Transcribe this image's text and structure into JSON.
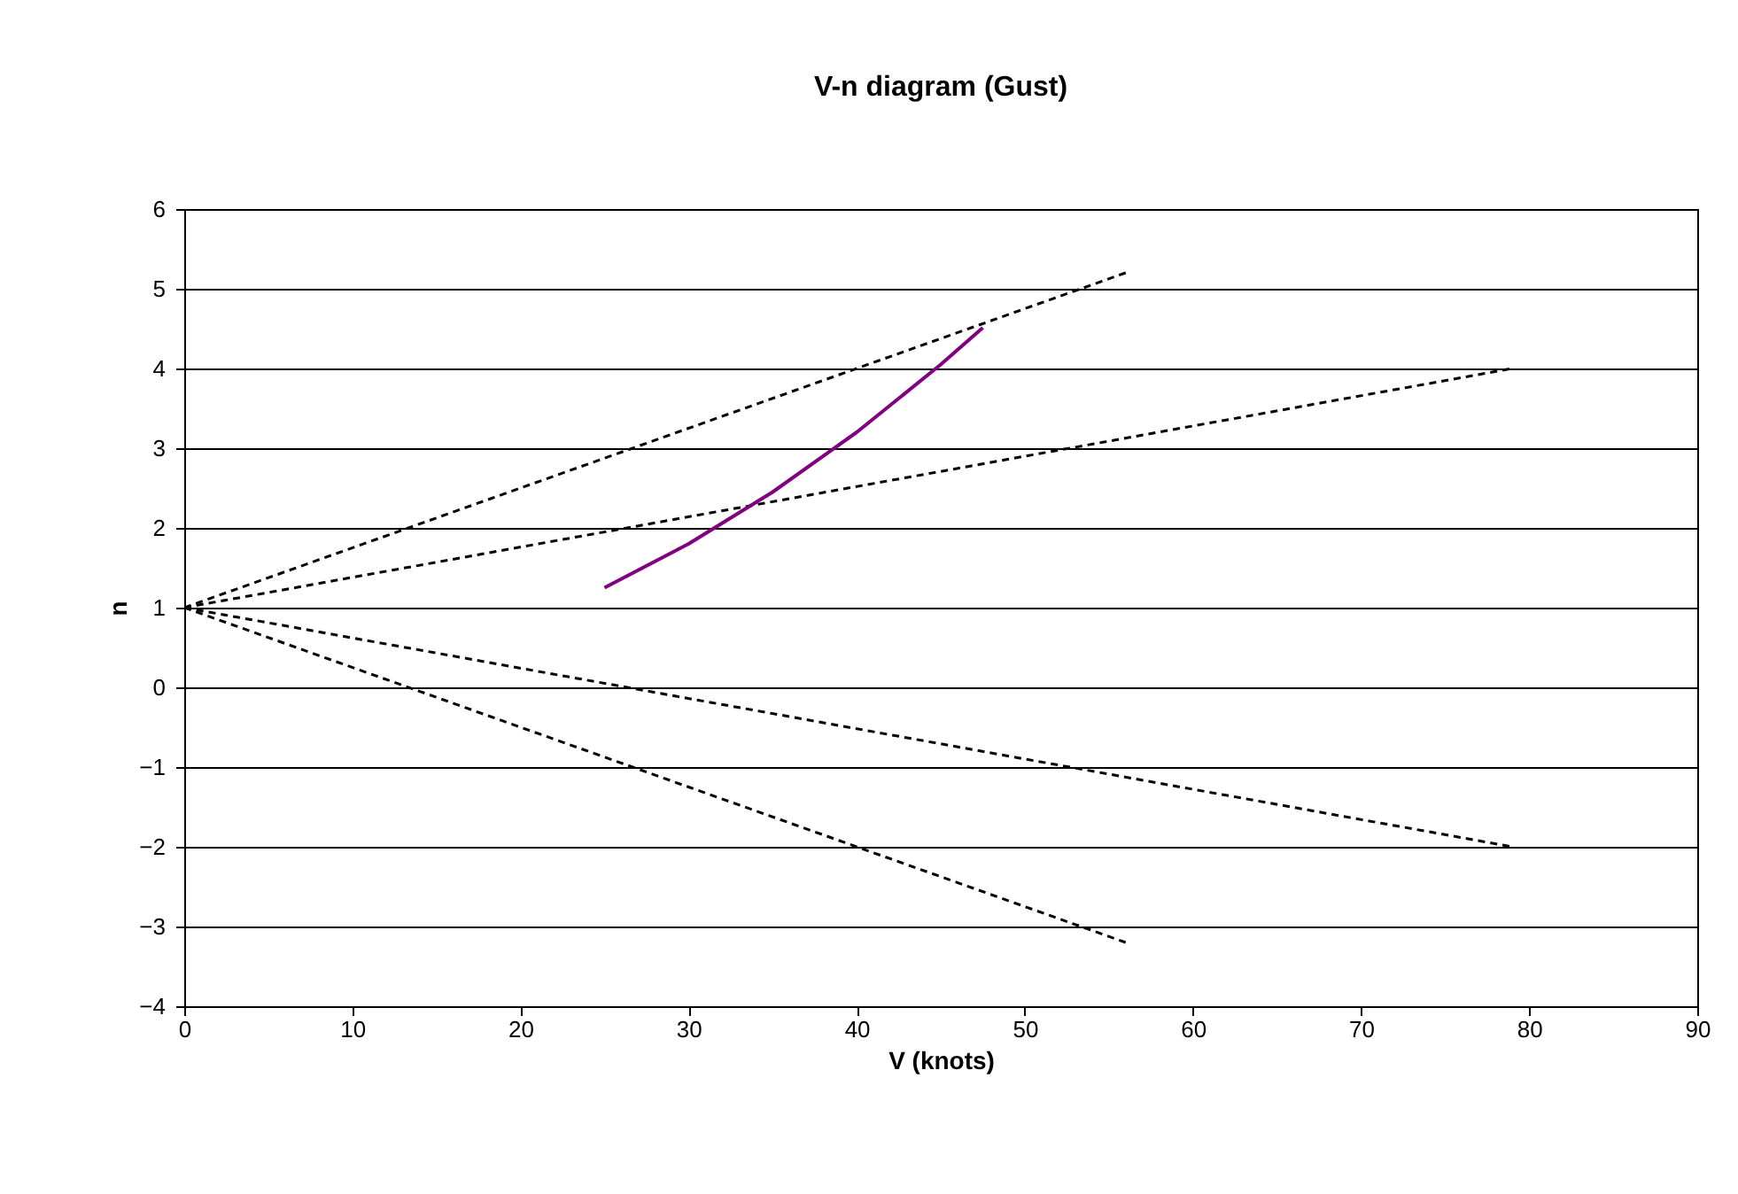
{
  "chart_data": {
    "type": "line",
    "title": "V-n diagram (Gust)",
    "xlabel": "V (knots)",
    "ylabel": "n",
    "xlim": [
      0,
      90
    ],
    "xticks": [
      0,
      10,
      20,
      30,
      40,
      50,
      60,
      70,
      80,
      90
    ],
    "ylim": [
      -4,
      6
    ],
    "yticks": [
      -4,
      -3,
      -2,
      -1,
      0,
      1,
      2,
      3,
      4,
      5,
      6
    ],
    "grid": "y",
    "marker": "none",
    "series": [
      {
        "color": "#000000",
        "line_style": "dashed",
        "x": [
          0,
          56
        ],
        "values": [
          1,
          5.2
        ]
      },
      {
        "color": "#000000",
        "line_style": "dashed",
        "x": [
          0,
          79
        ],
        "values": [
          1,
          4
        ]
      },
      {
        "color": "#000000",
        "line_style": "dashed",
        "x": [
          0,
          79
        ],
        "values": [
          1,
          -2
        ]
      },
      {
        "color": "#000000",
        "line_style": "dashed",
        "x": [
          0,
          56
        ],
        "values": [
          1,
          -3.2
        ]
      },
      {
        "color": "#800080",
        "line_style": "solid",
        "x": [
          25,
          30,
          35,
          40,
          45,
          47.5
        ],
        "values": [
          1.25,
          1.8,
          2.45,
          3.2,
          4.05,
          4.51
        ]
      }
    ]
  }
}
